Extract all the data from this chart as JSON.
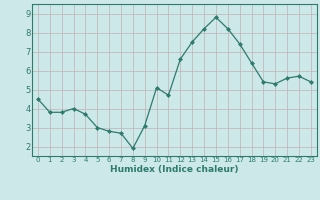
{
  "x": [
    0,
    1,
    2,
    3,
    4,
    5,
    6,
    7,
    8,
    9,
    10,
    11,
    12,
    13,
    14,
    15,
    16,
    17,
    18,
    19,
    20,
    21,
    22,
    23
  ],
  "y": [
    4.5,
    3.8,
    3.8,
    4.0,
    3.7,
    3.0,
    2.8,
    2.7,
    1.9,
    3.1,
    5.1,
    4.7,
    6.6,
    7.5,
    8.2,
    8.8,
    8.2,
    7.4,
    6.4,
    5.4,
    5.3,
    5.6,
    5.7,
    5.4
  ],
  "line_color": "#2e7b6e",
  "marker": "D",
  "marker_size": 2,
  "bg_color": "#cce8e8",
  "grid_color": "#c0b0b0",
  "axis_label_color": "#2e7b6e",
  "tick_color": "#2e7b6e",
  "xlabel": "Humidex (Indice chaleur)",
  "ylim": [
    1.5,
    9.5
  ],
  "xlim": [
    -0.5,
    23.5
  ],
  "yticks": [
    2,
    3,
    4,
    5,
    6,
    7,
    8,
    9
  ],
  "ytick_labels": [
    "2",
    "3",
    "4",
    "5",
    "6",
    "7",
    "8",
    "9"
  ],
  "spine_color": "#2e7b6e",
  "xlabel_fontsize": 6.5,
  "xtick_fontsize": 5.0,
  "ytick_fontsize": 6.0
}
